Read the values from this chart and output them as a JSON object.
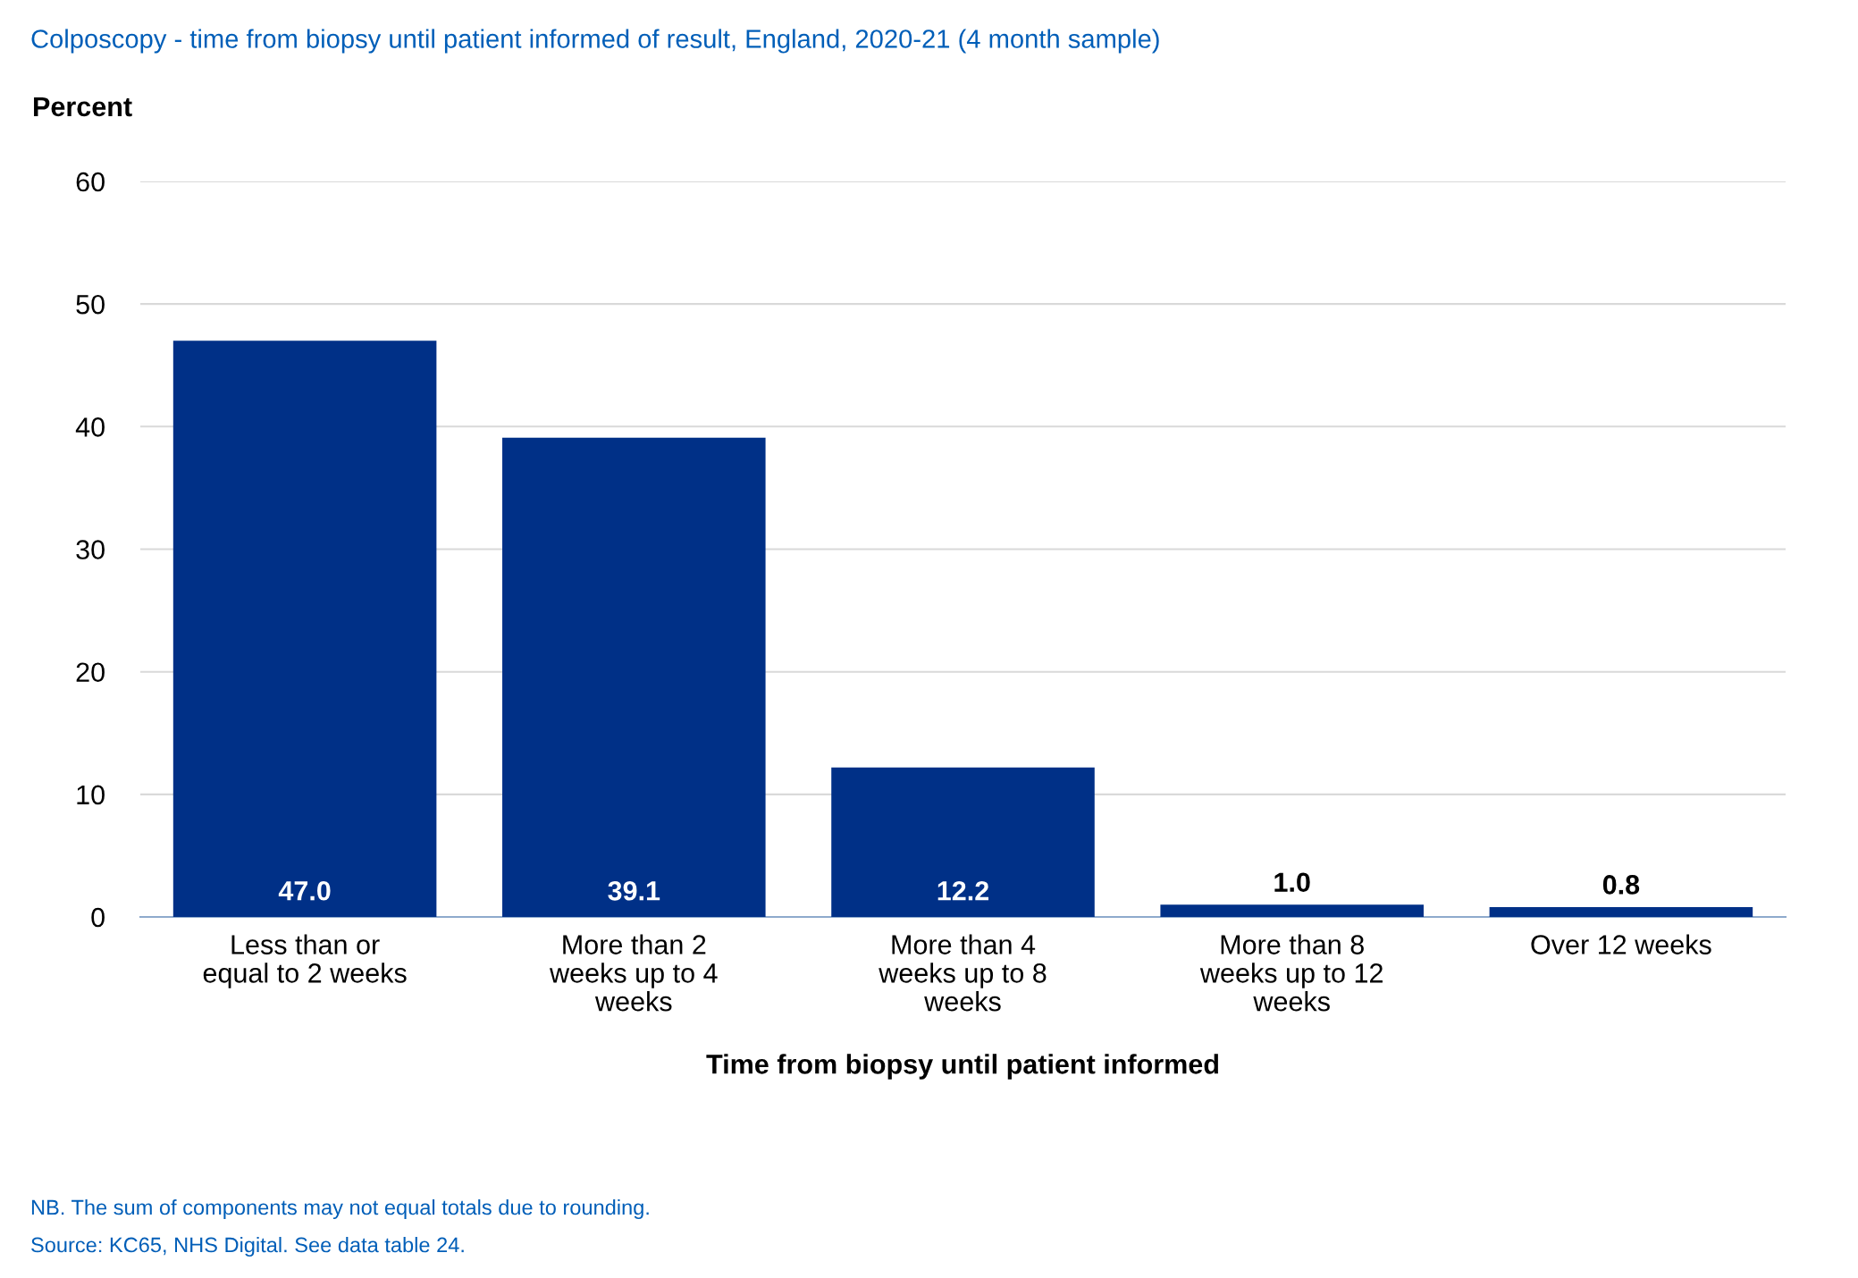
{
  "chart_data": {
    "type": "bar",
    "title": "Colposcopy - time from biopsy until patient informed of result, England, 2020-21 (4 month sample)",
    "ylabel": "Percent",
    "xlabel": "Time from biopsy until patient informed",
    "categories": [
      "Less than or\nequal to 2 weeks",
      "More than 2\nweeks up to 4\nweeks",
      "More than 4\nweeks up to 8\nweeks",
      "More than 8\nweeks up to 12\nweeks",
      "Over 12 weeks"
    ],
    "values": [
      47.0,
      39.1,
      12.2,
      1.0,
      0.8
    ],
    "value_labels": [
      "47.0",
      "39.1",
      "12.2",
      "1.0",
      "0.8"
    ],
    "color": "#003087",
    "ylim": [
      0,
      60
    ],
    "yticks": [
      0,
      10,
      20,
      30,
      40,
      50,
      60
    ],
    "grid": "y",
    "annotations": [
      "NB. The sum of components may not equal totals due to rounding.",
      "Source: KC65, NHS Digital. See data table 24."
    ]
  }
}
